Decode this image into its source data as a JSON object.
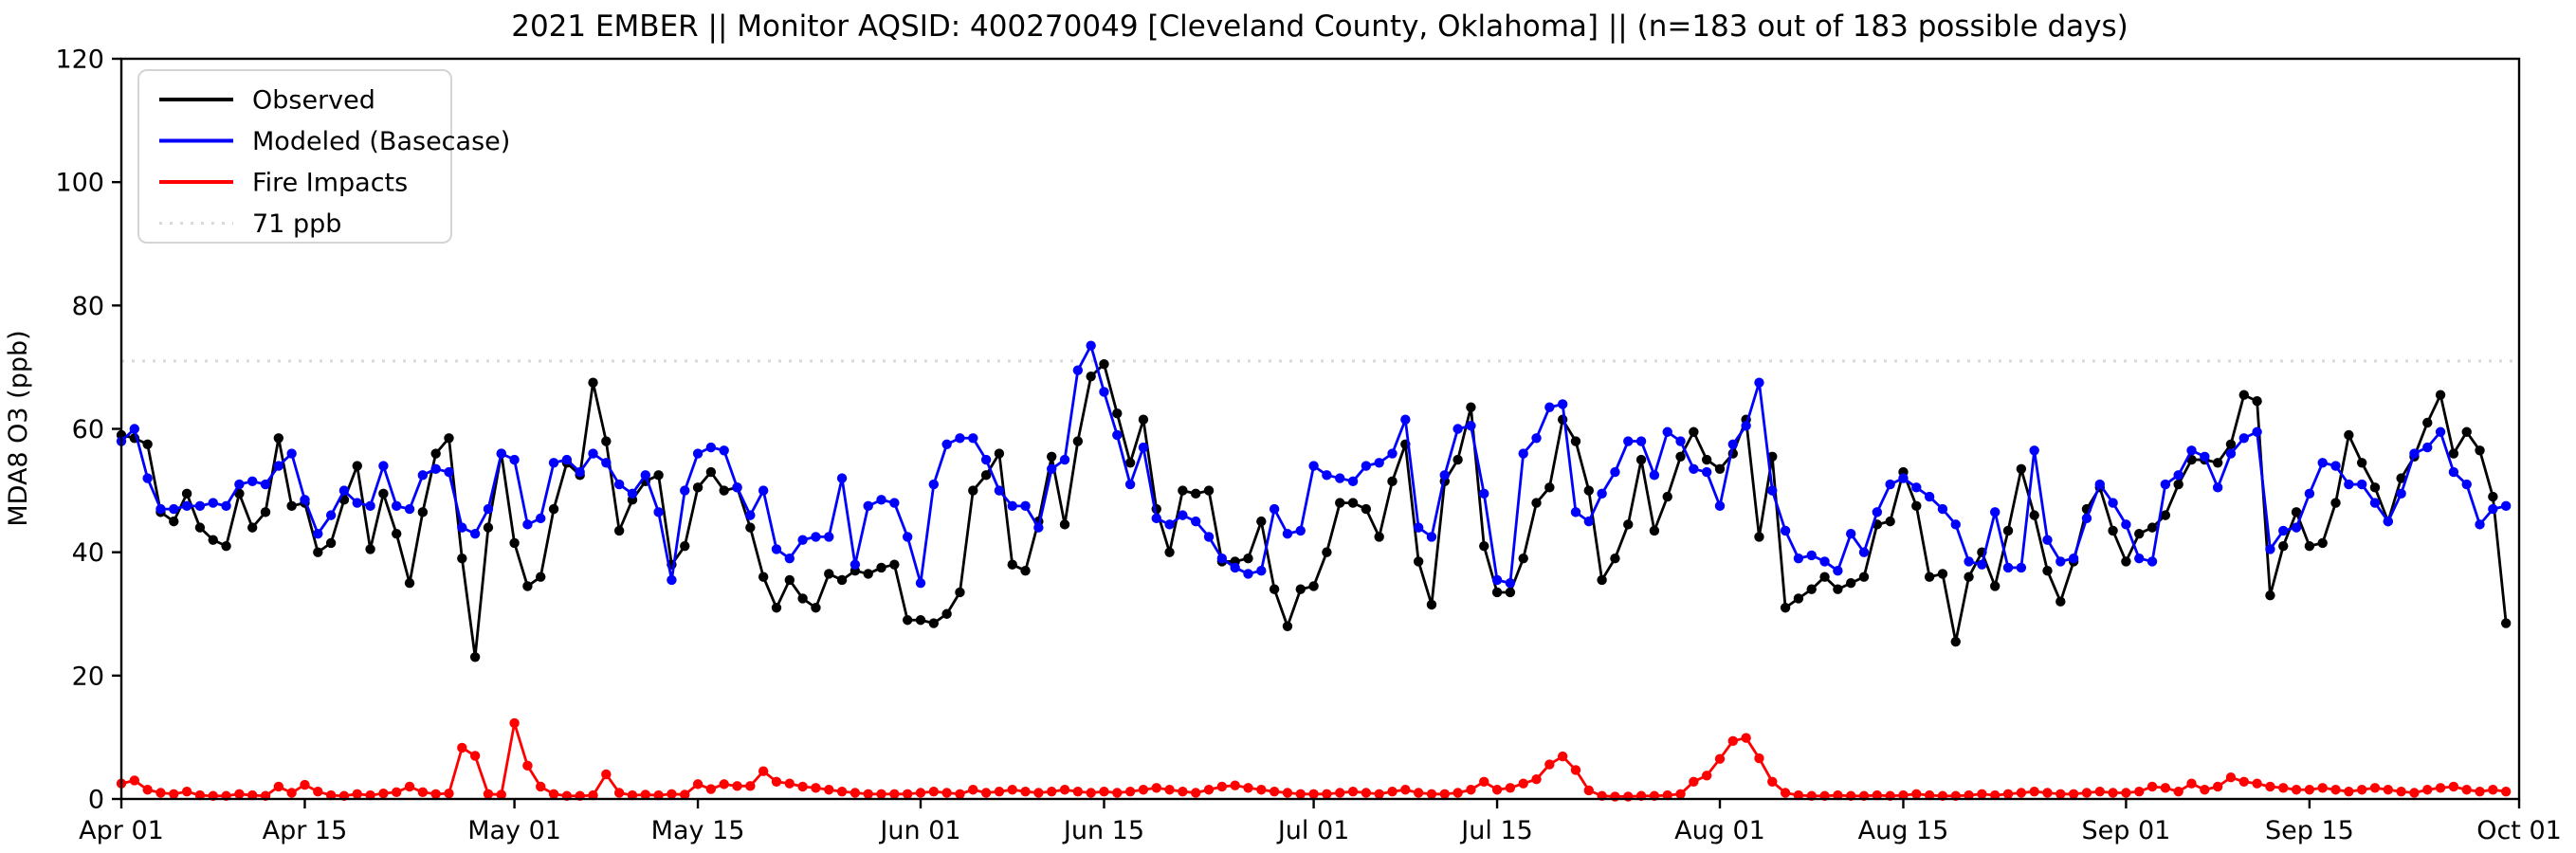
{
  "title": "2021 EMBER || Monitor AQSID: 400270049 [Cleveland County, Oklahoma] || (n=183 out of 183 possible days)",
  "chart_data": {
    "type": "line",
    "title": "2021 EMBER || Monitor AQSID: 400270049 [Cleveland County, Oklahoma] || (n=183 out of 183 possible days)",
    "xlabel": "",
    "ylabel": "MDA8 O3 (ppb)",
    "ylim": [
      0,
      120
    ],
    "yticks": [
      0,
      20,
      40,
      60,
      80,
      100,
      120
    ],
    "n_days": 183,
    "x_start_label": "Apr 01",
    "x_tick_days": [
      0,
      14,
      30,
      44,
      61,
      75,
      91,
      105,
      122,
      136,
      153,
      167,
      183
    ],
    "x_tick_labels": [
      "Apr 01",
      "Apr 15",
      "May 01",
      "May 15",
      "Jun 01",
      "Jun 15",
      "Jul 01",
      "Jul 15",
      "Aug 01",
      "Aug 15",
      "Sep 01",
      "Sep 15",
      "Oct 01"
    ],
    "grid": false,
    "legend_position": "upper left",
    "threshold": {
      "value": 71,
      "label": "71 ppb",
      "color": "#d9d9d9",
      "style": "dotted"
    },
    "colors": {
      "observed": "#000000",
      "modeled": "#0000ff",
      "fire": "#ff0000",
      "axis": "#000000",
      "background": "#ffffff"
    },
    "series": [
      {
        "name": "Observed",
        "color": "#000000",
        "values": [
          59,
          58.5,
          57.5,
          46.5,
          45,
          49.5,
          44,
          42,
          41,
          49.5,
          44,
          46.5,
          58.5,
          47.5,
          48,
          40,
          41.5,
          48.5,
          54,
          40.5,
          49.5,
          43,
          35,
          46.5,
          56,
          58.5,
          39,
          23,
          44,
          56,
          41.5,
          34.5,
          36,
          47,
          54.5,
          52.5,
          67.5,
          58,
          43.5,
          48.5,
          51.5,
          52.5,
          38,
          41,
          50.5,
          53,
          50,
          50.5,
          44,
          36,
          31,
          35.5,
          32.5,
          31,
          36.5,
          35.5,
          37,
          36.5,
          37.5,
          38,
          29,
          29,
          28.5,
          30,
          33.5,
          50,
          52.5,
          56,
          38,
          37,
          45,
          55.5,
          44.5,
          58,
          68.5,
          70.5,
          62.5,
          54.5,
          61.5,
          47,
          40,
          50,
          49.5,
          50,
          38.5,
          38.5,
          39,
          45,
          34,
          28,
          34,
          34.5,
          40,
          48,
          48,
          47,
          42.5,
          51.5,
          57.5,
          38.5,
          31.5,
          51.5,
          55,
          63.5,
          41,
          33.5,
          33.5,
          39,
          48,
          50.5,
          61.5,
          58,
          50,
          35.5,
          39,
          44.5,
          55,
          43.5,
          49,
          55.5,
          59.5,
          55,
          53.5,
          56,
          61.5,
          42.5,
          55.5,
          31,
          32.5,
          34,
          36,
          34,
          35,
          36,
          44.5,
          45,
          53,
          47.5,
          36,
          36.5,
          25.5,
          36,
          40,
          34.5,
          43.5,
          53.5,
          46,
          37,
          32,
          38.5,
          47,
          50.5,
          43.5,
          38.5,
          43,
          44,
          46,
          51,
          55,
          55,
          54.5,
          57.5,
          65.5,
          64.5,
          33,
          41,
          46.5,
          41,
          41.5,
          48,
          59,
          54.5,
          50.5,
          45,
          52,
          55.5,
          61,
          65.5,
          56,
          59.5,
          56.5,
          49,
          28.5
        ]
      },
      {
        "name": "Modeled (Basecase)",
        "color": "#0000ff",
        "values": [
          58,
          60,
          52,
          47,
          47,
          47.5,
          47.5,
          48,
          47.5,
          51,
          51.5,
          51,
          54,
          56,
          48.5,
          43,
          46,
          50,
          48,
          47.5,
          54,
          47.5,
          47,
          52.5,
          53.5,
          53,
          44,
          43,
          47,
          56,
          55,
          44.5,
          45.5,
          54.5,
          55,
          53,
          56,
          54.5,
          51,
          49.5,
          52.5,
          46.5,
          35.5,
          50,
          56,
          57,
          56.5,
          50.5,
          46,
          50,
          40.5,
          39,
          42,
          42.5,
          42.5,
          52,
          38,
          47.5,
          48.5,
          48,
          42.5,
          35,
          51,
          57.5,
          58.5,
          58.5,
          55,
          50,
          47.5,
          47.5,
          44,
          53.5,
          55,
          69.5,
          73.5,
          66,
          59,
          51,
          57,
          45.5,
          44.5,
          46,
          45,
          42.5,
          39,
          37.5,
          36.5,
          37,
          47,
          43,
          43.5,
          54,
          52.5,
          52,
          51.5,
          54,
          54.5,
          56,
          61.5,
          44,
          42.5,
          52.5,
          60,
          60.5,
          49.5,
          35.5,
          35,
          56,
          58.5,
          63.5,
          64,
          46.5,
          45,
          49.5,
          53,
          58,
          58,
          52.5,
          59.5,
          58,
          53.5,
          53,
          47.5,
          57.5,
          60.5,
          67.5,
          50,
          43.5,
          39,
          39.5,
          38.5,
          37,
          43,
          40,
          46.5,
          51,
          52,
          50.5,
          49,
          47,
          44.5,
          38.5,
          38,
          46.5,
          37.5,
          37.5,
          56.5,
          42,
          38.5,
          39,
          45.5,
          51,
          48,
          44.5,
          39,
          38.5,
          51,
          52.5,
          56.5,
          55.5,
          50.5,
          56,
          58.5,
          59.5,
          40.5,
          43.5,
          44,
          49.5,
          54.5,
          54,
          51,
          51,
          48,
          45,
          49.5,
          56,
          57,
          59.5,
          53,
          51,
          44.5,
          47,
          47.5
        ]
      },
      {
        "name": "Fire Impacts",
        "color": "#ff0000",
        "values": [
          2.5,
          3,
          1.5,
          1,
          0.8,
          1.2,
          0.6,
          0.5,
          0.5,
          0.8,
          0.6,
          0.5,
          2,
          1,
          2.3,
          1.2,
          0.6,
          0.5,
          0.8,
          0.6,
          0.9,
          1.1,
          2,
          1.1,
          0.8,
          0.9,
          8.3,
          7,
          0.8,
          0.7,
          12.3,
          5.4,
          2,
          0.8,
          0.5,
          0.5,
          0.6,
          4,
          1,
          0.6,
          0.7,
          0.6,
          0.8,
          0.7,
          2.4,
          1.6,
          2.4,
          2.1,
          2.1,
          4.5,
          2.8,
          2.5,
          2,
          1.8,
          1.5,
          1.2,
          1,
          0.8,
          0.8,
          0.8,
          0.8,
          1,
          1.2,
          1,
          0.8,
          1.5,
          1,
          1.2,
          1.5,
          1.2,
          1,
          1.2,
          1.5,
          1.2,
          1,
          1.2,
          1,
          1.2,
          1.5,
          1.8,
          1.5,
          1.2,
          1,
          1.5,
          2,
          2.2,
          1.8,
          1.5,
          1.2,
          1,
          0.8,
          0.8,
          0.8,
          1,
          1.2,
          1,
          0.8,
          1.2,
          1.5,
          1,
          0.8,
          0.8,
          1,
          1.5,
          2.8,
          1.5,
          1.8,
          2.5,
          3.2,
          5.6,
          6.9,
          4.7,
          1.4,
          0.5,
          0.4,
          0.4,
          0.5,
          0.5,
          0.6,
          0.8,
          2.8,
          3.8,
          6.5,
          9.4,
          9.9,
          6.6,
          2.8,
          1,
          0.6,
          0.5,
          0.5,
          0.6,
          0.5,
          0.5,
          0.6,
          0.5,
          0.6,
          0.8,
          0.6,
          0.5,
          0.5,
          0.6,
          0.8,
          0.6,
          0.8,
          1,
          1.2,
          1,
          0.8,
          0.8,
          1,
          1.2,
          1,
          1,
          1.2,
          2,
          1.8,
          1.2,
          2.5,
          1.5,
          2,
          3.5,
          2.8,
          2.5,
          2,
          1.8,
          1.5,
          1.5,
          1.8,
          1.5,
          1.2,
          1.5,
          1.8,
          1.5,
          1.2,
          1,
          1.5,
          1.8,
          2,
          1.5,
          1.2,
          1.5,
          1.2
        ]
      }
    ],
    "legend_entries": [
      {
        "label": "Observed",
        "color": "#000000",
        "style": "solid"
      },
      {
        "label": "Modeled (Basecase)",
        "color": "#0000ff",
        "style": "solid"
      },
      {
        "label": "Fire Impacts",
        "color": "#ff0000",
        "style": "solid"
      },
      {
        "label": "71 ppb",
        "color": "#d9d9d9",
        "style": "dotted"
      }
    ]
  }
}
